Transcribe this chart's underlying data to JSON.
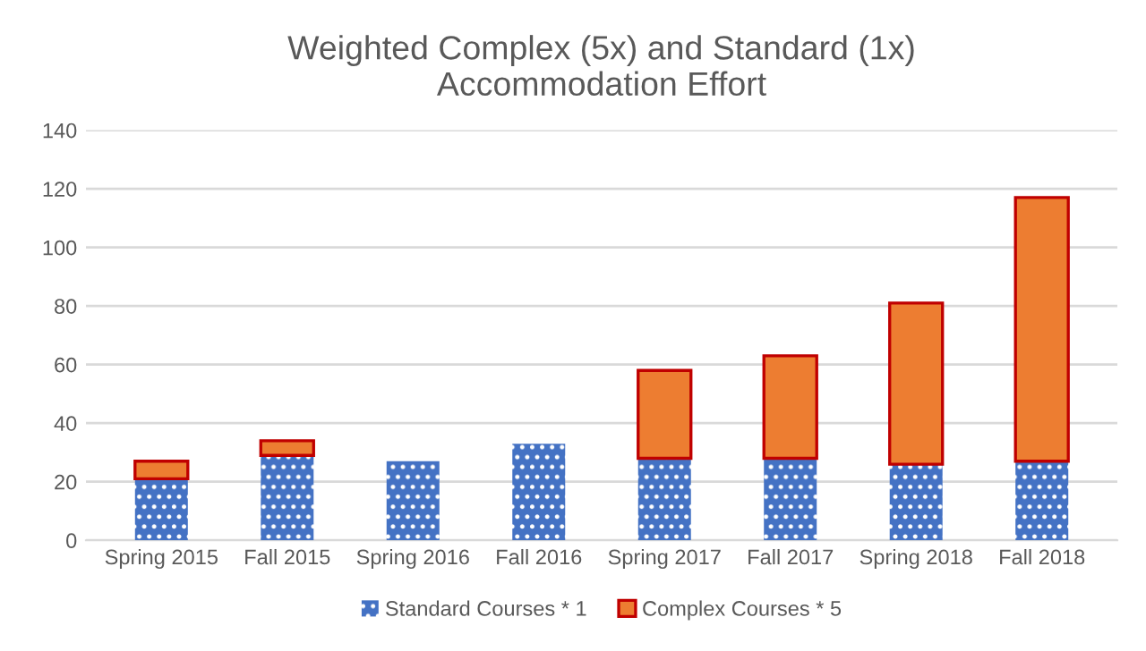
{
  "chart_data": {
    "type": "bar",
    "title": "Weighted Complex (5x) and Standard (1x)\nAccommodation Effort",
    "categories": [
      "Spring 2015",
      "Fall 2015",
      "Spring 2016",
      "Fall 2016",
      "Spring 2017",
      "Fall 2017",
      "Spring 2018",
      "Fall 2018"
    ],
    "stacked": true,
    "series": [
      {
        "name": "Standard Courses * 1",
        "color": "#4472c4",
        "values": [
          21,
          29,
          27,
          33,
          28,
          28,
          26,
          27
        ]
      },
      {
        "name": "Complex Courses * 5",
        "color": "#ed7d31",
        "values": [
          6,
          5,
          null,
          null,
          30,
          35,
          55,
          90
        ]
      }
    ],
    "ylim": [
      0,
      140
    ],
    "yticks": [
      0,
      20,
      40,
      60,
      80,
      100,
      120,
      140
    ],
    "grid": "y",
    "legend": "bottom"
  }
}
